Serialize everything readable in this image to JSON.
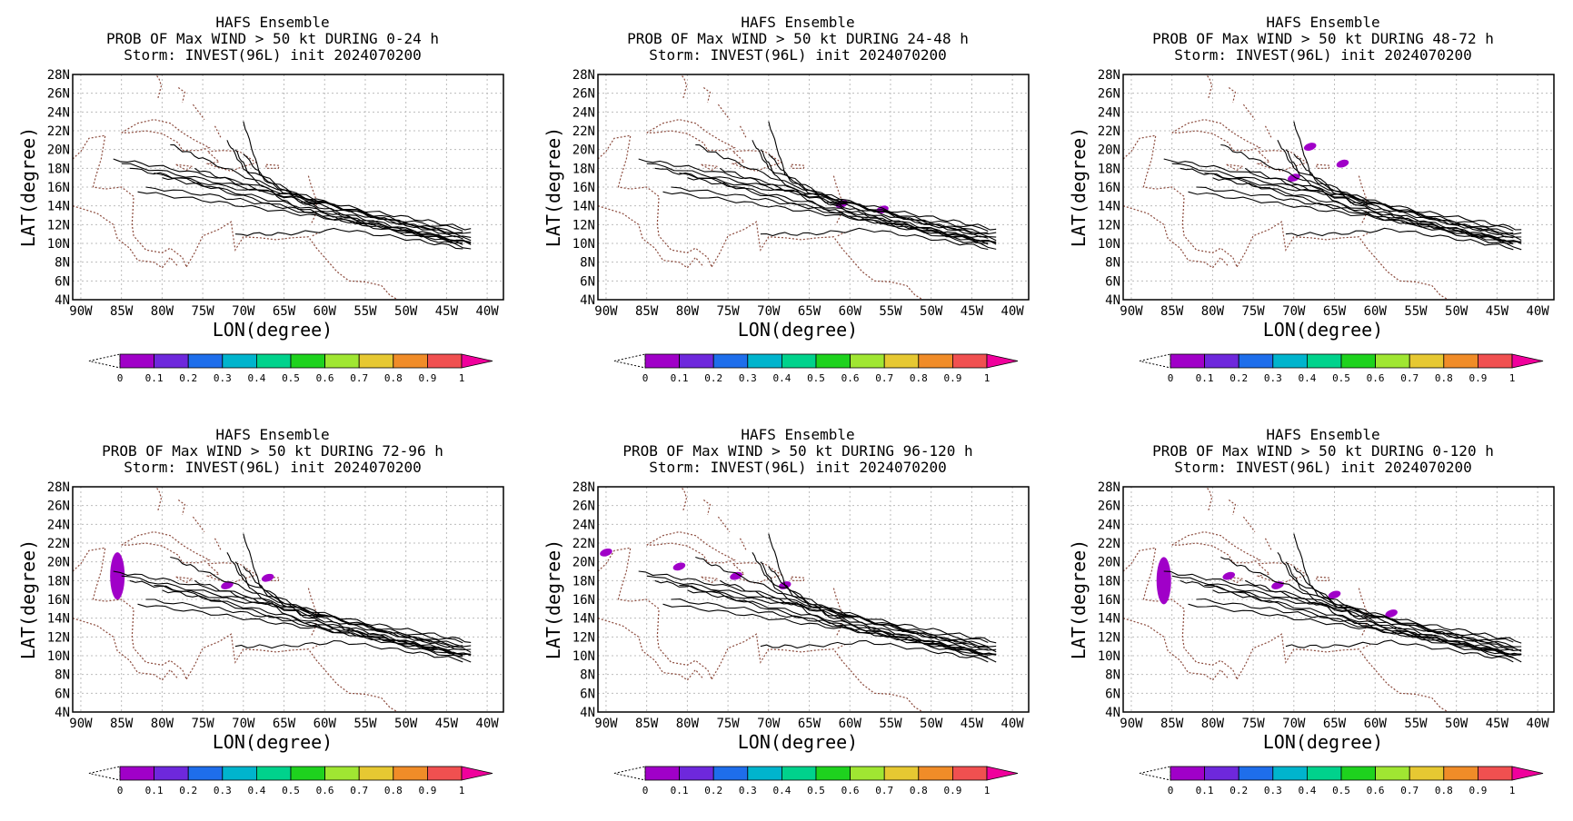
{
  "figure": {
    "panels": [
      {
        "title": "HAFS Ensemble",
        "subtitle": "PROB OF Max WIND > 50 kt DURING  0-24 h",
        "storm": "Storm: INVEST(96L) init 2024070200",
        "period": "0-24 h"
      },
      {
        "title": "HAFS Ensemble",
        "subtitle": "PROB OF Max WIND > 50 kt DURING 24-48 h",
        "storm": "Storm: INVEST(96L) init 2024070200",
        "period": "24-48 h"
      },
      {
        "title": "HAFS Ensemble",
        "subtitle": "PROB OF Max WIND > 50 kt DURING 48-72 h",
        "storm": "Storm: INVEST(96L) init 2024070200",
        "period": "48-72 h"
      },
      {
        "title": "HAFS Ensemble",
        "subtitle": "PROB OF Max WIND > 50 kt DURING 72-96 h",
        "storm": "Storm: INVEST(96L) init 2024070200",
        "period": "72-96 h"
      },
      {
        "title": "HAFS Ensemble",
        "subtitle": "PROB OF Max WIND > 50 kt DURING 96-120 h",
        "storm": "Storm: INVEST(96L) init 2024070200",
        "period": "96-120 h"
      },
      {
        "title": "HAFS Ensemble",
        "subtitle": "PROB OF Max WIND > 50 kt DURING 0-120 h",
        "storm": "Storm: INVEST(96L) init 2024070200",
        "period": "0-120 h"
      }
    ],
    "xlabel": "LON(degree)",
    "ylabel": "LAT(degree)",
    "lon_ticks": [
      "90W",
      "85W",
      "80W",
      "75W",
      "70W",
      "65W",
      "60W",
      "55W",
      "50W",
      "45W",
      "40W"
    ],
    "lat_ticks": [
      "4N",
      "6N",
      "8N",
      "10N",
      "12N",
      "14N",
      "16N",
      "18N",
      "20N",
      "22N",
      "24N",
      "26N",
      "28N"
    ],
    "colorbar": {
      "labels": [
        "0",
        "0.1",
        "0.2",
        "0.3",
        "0.4",
        "0.5",
        "0.6",
        "0.7",
        "0.8",
        "0.9",
        "1"
      ],
      "colors": [
        "#a000c8",
        "#6e28dc",
        "#1e6eeb",
        "#00b4cd",
        "#00d28c",
        "#1ed21e",
        "#a0e632",
        "#e6c832",
        "#f08c28",
        "#f05050",
        "#f0009c"
      ]
    }
  },
  "chart_data": {
    "type": "map",
    "xlabel": "LON(degree)",
    "ylabel": "LAT(degree)",
    "xlim": [
      -91,
      -38
    ],
    "ylim": [
      4,
      28
    ],
    "colorbar_range": [
      0,
      1
    ],
    "grid": true,
    "ensemble_tracks_approx_lonlat": [
      [
        [
          -42,
          10
        ],
        [
          -50,
          11.5
        ],
        [
          -58,
          13
        ],
        [
          -66,
          14.5
        ],
        [
          -74,
          16
        ],
        [
          -80,
          17
        ]
      ],
      [
        [
          -42,
          10.5
        ],
        [
          -50,
          12
        ],
        [
          -58,
          13.5
        ],
        [
          -65,
          15
        ],
        [
          -71,
          16.5
        ],
        [
          -76,
          18
        ]
      ],
      [
        [
          -42,
          11
        ],
        [
          -50,
          12
        ],
        [
          -57,
          13.5
        ],
        [
          -64,
          15.5
        ],
        [
          -70,
          18
        ],
        [
          -72,
          21
        ]
      ],
      [
        [
          -43,
          10
        ],
        [
          -51,
          11.5
        ],
        [
          -59,
          13
        ],
        [
          -66,
          14
        ],
        [
          -73,
          15
        ],
        [
          -82,
          16
        ]
      ],
      [
        [
          -42,
          9.5
        ],
        [
          -50,
          11
        ],
        [
          -58,
          12.5
        ],
        [
          -64,
          14
        ],
        [
          -69,
          17
        ],
        [
          -71,
          20
        ]
      ],
      [
        [
          -43,
          11.5
        ],
        [
          -51,
          12.5
        ],
        [
          -59,
          14
        ],
        [
          -67,
          15.5
        ],
        [
          -76,
          17
        ],
        [
          -85,
          18.5
        ]
      ],
      [
        [
          -42,
          10
        ],
        [
          -49,
          11
        ],
        [
          -56,
          12.5
        ],
        [
          -62,
          14
        ],
        [
          -67,
          16.5
        ],
        [
          -70,
          19.5
        ]
      ],
      [
        [
          -43,
          10.5
        ],
        [
          -51,
          11.5
        ],
        [
          -58,
          12.5
        ],
        [
          -66,
          13.5
        ],
        [
          -74,
          14.5
        ],
        [
          -83,
          15.5
        ]
      ],
      [
        [
          -42,
          10
        ],
        [
          -50,
          11.5
        ],
        [
          -57,
          13
        ],
        [
          -63,
          14.5
        ],
        [
          -68,
          17.5
        ],
        [
          -70,
          23
        ]
      ],
      [
        [
          -43,
          11
        ],
        [
          -52,
          12.5
        ],
        [
          -61,
          14.5
        ],
        [
          -70,
          16.5
        ],
        [
          -79,
          18
        ],
        [
          -86,
          19
        ]
      ],
      [
        [
          -42,
          11.5
        ],
        [
          -48,
          12.5
        ],
        [
          -55,
          13.5
        ],
        [
          -63,
          15
        ],
        [
          -72,
          16
        ],
        [
          -81,
          17.5
        ]
      ],
      [
        [
          -43,
          9.5
        ],
        [
          -50,
          10.5
        ],
        [
          -58,
          11.5
        ],
        [
          -65,
          11
        ],
        [
          -71,
          11
        ]
      ],
      [
        [
          -42,
          10.5
        ],
        [
          -50,
          12
        ],
        [
          -59,
          14
        ],
        [
          -68,
          16.5
        ],
        [
          -75,
          19
        ],
        [
          -79,
          20.5
        ]
      ],
      [
        [
          -43,
          10
        ],
        [
          -52,
          11.5
        ],
        [
          -61,
          13
        ],
        [
          -70,
          15
        ],
        [
          -78,
          17
        ],
        [
          -84,
          18
        ]
      ]
    ],
    "probability_areas_approx": [
      {
        "panel": "0-24 h",
        "areas": []
      },
      {
        "panel": "24-48 h",
        "areas": [
          {
            "lon": -61,
            "lat": 14.2,
            "value": 0.05
          },
          {
            "lon": -56,
            "lat": 13.6,
            "value": 0.05
          }
        ]
      },
      {
        "panel": "48-72 h",
        "areas": [
          {
            "lon": -68,
            "lat": 20.3,
            "value": 0.05
          },
          {
            "lon": -64,
            "lat": 18.5,
            "value": 0.05
          },
          {
            "lon": -70,
            "lat": 17,
            "value": 0.05
          }
        ]
      },
      {
        "panel": "72-96 h",
        "areas": [
          {
            "lon": -85.5,
            "lat": 18.5,
            "value": 0.08
          },
          {
            "lon": -72,
            "lat": 17.5,
            "value": 0.05
          },
          {
            "lon": -67,
            "lat": 18.3,
            "value": 0.05
          }
        ]
      },
      {
        "panel": "96-120 h",
        "areas": [
          {
            "lon": -90,
            "lat": 21,
            "value": 0.05
          },
          {
            "lon": -81,
            "lat": 19.5,
            "value": 0.05
          },
          {
            "lon": -74,
            "lat": 18.5,
            "value": 0.05
          },
          {
            "lon": -68,
            "lat": 17.5,
            "value": 0.05
          }
        ]
      },
      {
        "panel": "0-120 h",
        "areas": [
          {
            "lon": -86,
            "lat": 18,
            "value": 0.08
          },
          {
            "lon": -78,
            "lat": 18.5,
            "value": 0.05
          },
          {
            "lon": -72,
            "lat": 17.5,
            "value": 0.05
          },
          {
            "lon": -65,
            "lat": 16.5,
            "value": 0.05
          },
          {
            "lon": -58,
            "lat": 14.5,
            "value": 0.05
          }
        ]
      }
    ]
  }
}
